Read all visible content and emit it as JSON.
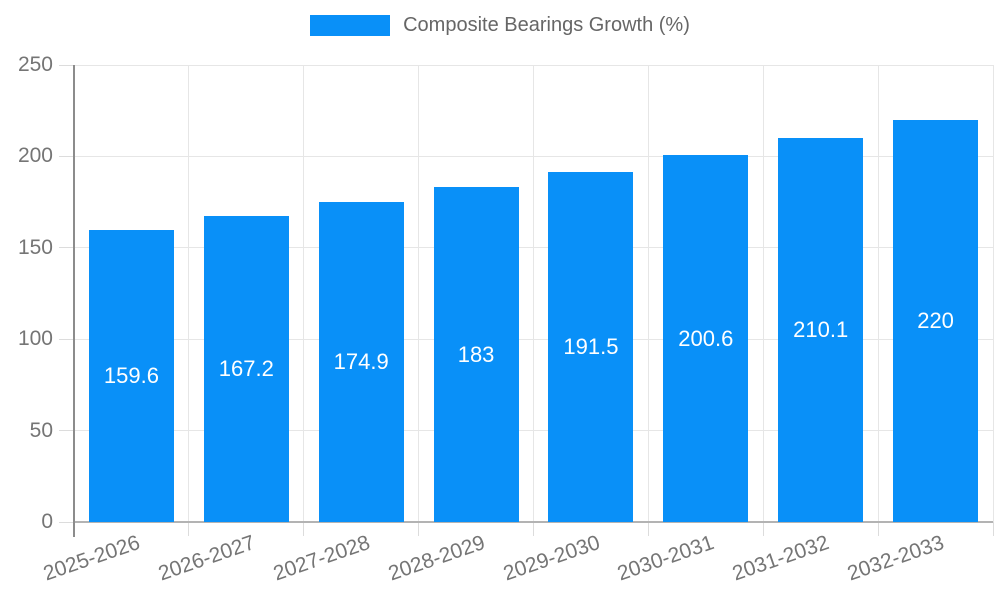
{
  "legend": {
    "label": "Composite Bearings Growth (%)"
  },
  "chart_data": {
    "type": "bar",
    "title": "Composite Bearings Growth (%)",
    "series_name": "Composite Bearings Growth (%)",
    "categories": [
      "2025-2026",
      "2026-2027",
      "2027-2028",
      "2028-2029",
      "2029-2030",
      "2030-2031",
      "2031-2032",
      "2032-2033"
    ],
    "values": [
      159.6,
      167.2,
      174.9,
      183,
      191.5,
      200.6,
      210.1,
      220
    ],
    "value_labels": [
      "159.6",
      "167.2",
      "174.9",
      "183",
      "191.5",
      "200.6",
      "210.1",
      "220"
    ],
    "xlabel": "",
    "ylabel": "",
    "ylim": [
      0,
      250
    ],
    "yticks": [
      0,
      50,
      100,
      150,
      200,
      250
    ],
    "grid": true,
    "legend_position": "top",
    "colors": {
      "bar": "#0990F8",
      "bar_value_text": "#ffffff",
      "gridline": "#e6e6e6",
      "axis_text": "#757575",
      "legend_text": "#666666",
      "background": "#ffffff"
    }
  }
}
